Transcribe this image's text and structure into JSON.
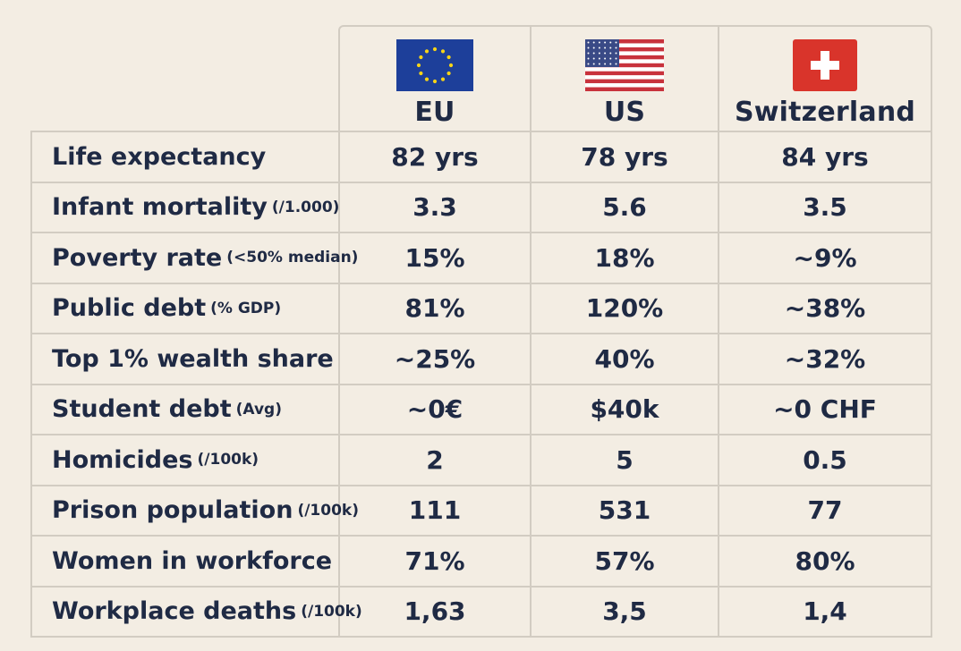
{
  "columns": [
    {
      "name": "EU",
      "flag": "eu-flag-icon"
    },
    {
      "name": "US",
      "flag": "us-flag-icon"
    },
    {
      "name": "Switzerland",
      "flag": "swiss-flag-icon"
    }
  ],
  "colors": {
    "background": "#f3ede3",
    "text": "#1f2a44",
    "grid": "#d2ccc2",
    "eu_blue": "#1d3f9a",
    "eu_star": "#f7d417",
    "us_red": "#c8323c",
    "us_blue": "#3a4a86",
    "swiss_red": "#d9342b"
  },
  "rows": [
    {
      "label": "Life expectancy",
      "unit": "",
      "values": [
        "82 yrs",
        "78 yrs",
        "84 yrs"
      ]
    },
    {
      "label": "Infant mortality",
      "unit": "(/1.000)",
      "values": [
        "3.3",
        "5.6",
        "3.5"
      ]
    },
    {
      "label": "Poverty rate",
      "unit": "(<50% median)",
      "values": [
        "15%",
        "18%",
        "~9%"
      ]
    },
    {
      "label": "Public debt",
      "unit": "(% GDP)",
      "values": [
        "81%",
        "120%",
        "~38%"
      ]
    },
    {
      "label": "Top 1% wealth share",
      "unit": "",
      "values": [
        "~25%",
        "40%",
        "~32%"
      ]
    },
    {
      "label": "Student debt",
      "unit": "(Avg)",
      "values": [
        "~0€",
        "$40k",
        "~0 CHF"
      ]
    },
    {
      "label": "Homicides",
      "unit": "(/100k)",
      "values": [
        "2",
        "5",
        "0.5"
      ]
    },
    {
      "label": "Prison population",
      "unit": "(/100k)",
      "values": [
        "111",
        "531",
        "77"
      ]
    },
    {
      "label": "Women in workforce",
      "unit": "",
      "values": [
        "71%",
        "57%",
        "80%"
      ]
    },
    {
      "label": "Workplace deaths",
      "unit": "(/100k)",
      "values": [
        "1,63",
        "3,5",
        "1,4"
      ]
    }
  ]
}
